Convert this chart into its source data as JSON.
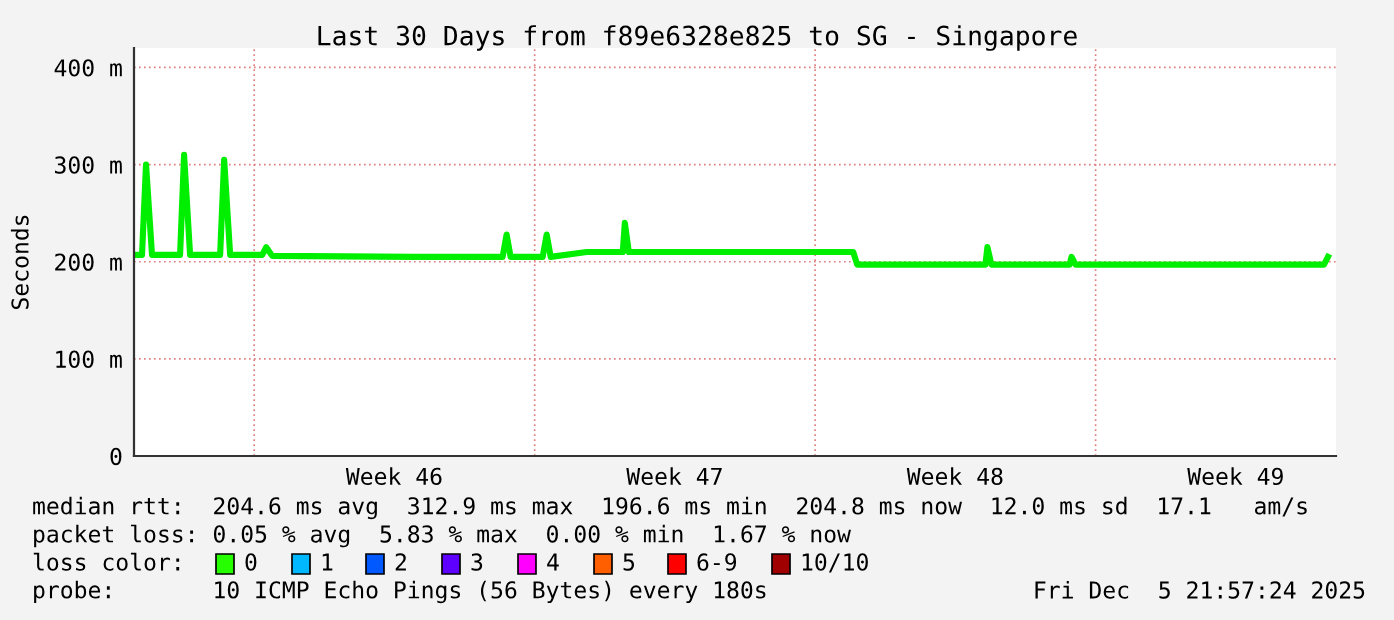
{
  "chart_data": {
    "type": "line",
    "title": "Last 30 Days from f89e6328e825 to SG - Singapore",
    "ylabel": "Seconds",
    "x": [
      "2025-11-06T00:00",
      "2025-11-06T04:48",
      "2025-11-06T07:12",
      "2025-11-06T10:48",
      "2025-11-07T03:36",
      "2025-11-07T06:00",
      "2025-11-07T09:36",
      "2025-11-08T03:36",
      "2025-11-08T06:00",
      "2025-11-08T09:36",
      "2025-11-09T04:48",
      "2025-11-09T07:12",
      "2025-11-09T10:48",
      "2025-11-13T00:00",
      "2025-11-15T04:48",
      "2025-11-15T07:12",
      "2025-11-15T09:36",
      "2025-11-16T04:48",
      "2025-11-16T07:12",
      "2025-11-16T09:36",
      "2025-11-17T07:12",
      "2025-11-18T04:48",
      "2025-11-18T06:00",
      "2025-11-18T08:24",
      "2025-11-23T22:48",
      "2025-11-24T01:12",
      "2025-11-27T06:00",
      "2025-11-27T07:12",
      "2025-11-27T09:36",
      "2025-11-29T08:24",
      "2025-11-29T09:36",
      "2025-11-29T12:00",
      "2025-12-05T16:48",
      "2025-12-05T19:12"
    ],
    "series": [
      {
        "color": "#00ee00",
        "values": [
          207,
          207,
          300,
          207,
          207,
          310,
          207,
          207,
          305,
          207,
          207,
          215,
          206,
          205,
          205,
          228,
          205,
          205,
          228,
          205,
          210,
          210,
          240,
          210,
          210,
          197,
          197,
          215,
          197,
          197,
          205,
          197,
          197,
          205
        ]
      }
    ],
    "xlim": [
      "2025-11-06T00:00",
      "2025-12-06T00:00"
    ],
    "xticks": [
      {
        "value": "2025-11-09",
        "label": null
      },
      {
        "value": "2025-11-12T12:00",
        "label": "Week 46"
      },
      {
        "value": "2025-11-16",
        "label": null
      },
      {
        "value": "2025-11-19T12:00",
        "label": "Week 47"
      },
      {
        "value": "2025-11-23",
        "label": null
      },
      {
        "value": "2025-11-26T12:00",
        "label": "Week 48"
      },
      {
        "value": "2025-11-30",
        "label": null
      },
      {
        "value": "2025-12-03T12:00",
        "label": "Week 49"
      }
    ],
    "ylim": [
      0,
      420
    ],
    "yticks": [
      {
        "value": 0,
        "label": "0"
      },
      {
        "value": 100,
        "label": "100 m"
      },
      {
        "value": 200,
        "label": "200 m"
      },
      {
        "value": 300,
        "label": "300 m"
      },
      {
        "value": 400,
        "label": "400 m"
      }
    ],
    "grid": true,
    "legend": false,
    "annotations": [
      "median rtt:  204.6 ms avg  312.9 ms max  196.6 ms min  204.8 ms now  12.0 ms sd  17.1   am/s",
      "packet loss: 0.05 % avg  5.83 % max  0.00 % min  1.67 % now",
      "loss color:",
      "0",
      "1",
      "2",
      "3",
      "4",
      "5",
      "6-9",
      "10/10",
      "probe:       10 ICMP Echo Pings (56 Bytes) every 180s",
      "Fri Dec  5 21:57:24 2025"
    ]
  }
}
